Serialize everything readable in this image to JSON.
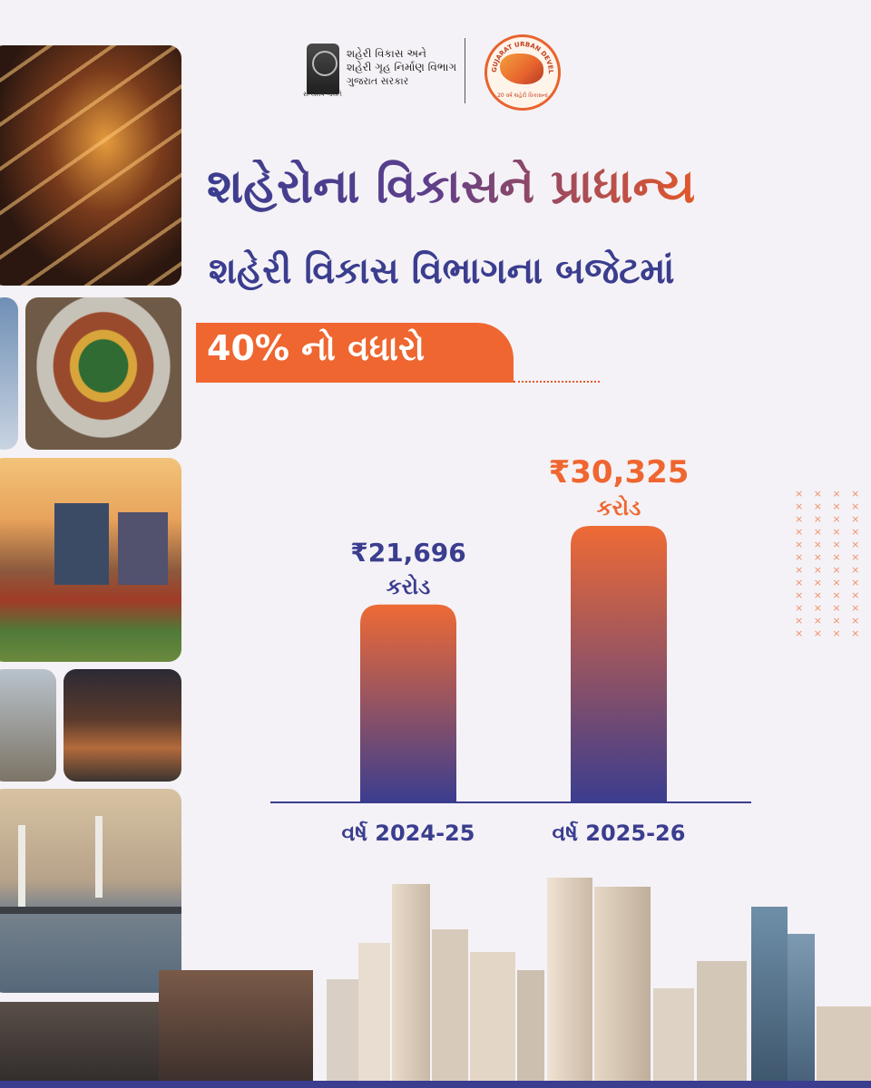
{
  "header": {
    "department_line1": "શહેરી વિકાસ અને",
    "department_line2": "શહેરી ગૃહ નિર્માણ વિભાગ",
    "department_line3": "ગુજરાત સરકાર",
    "emblem_caption": "સત્યમેવ જયતે",
    "logo_ring_text": "GUJARAT URBAN DEVELOPMENT YEAR 2025",
    "logo_bottom_text": "20 વર્ષ શહેરી વિકાસનાં"
  },
  "headline": "શહેરોના વિકાસને પ્રાધાન્ય",
  "subheadline": "શહેરી વિકાસ વિભાગના બજેટમાં",
  "highlight": "40% નો વધારો",
  "colors": {
    "navy": "#3b3d8f",
    "orange": "#ef6630",
    "bar_top": "#ee6a35",
    "bar_bottom": "#3b3d8f"
  },
  "chart_data": {
    "type": "bar",
    "categories": [
      "વર્ષ 2024-25",
      "વર્ષ 2025-26"
    ],
    "values": [
      21696,
      30325
    ],
    "value_labels": [
      "₹21,696",
      "₹30,325"
    ],
    "unit_label": "કરોડ",
    "title": "",
    "xlabel": "",
    "ylabel": "",
    "ylim": [
      0,
      30325
    ],
    "grid": false,
    "legend": "none"
  }
}
